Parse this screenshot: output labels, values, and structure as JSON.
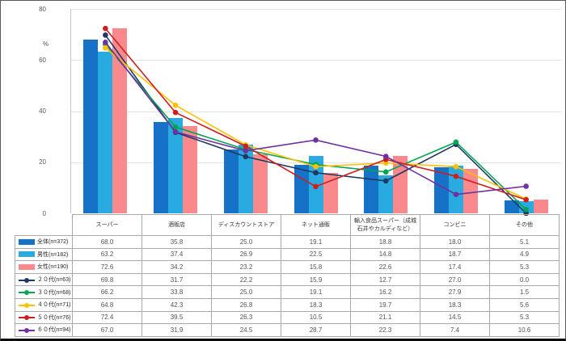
{
  "chart_data": {
    "type": "bar+line",
    "title": "",
    "ylabel": "%",
    "ylim": [
      0,
      80
    ],
    "yticks": [
      0,
      20,
      40,
      60,
      80
    ],
    "grid": true,
    "legend_position": "table-left-column",
    "categories": [
      "スーパー",
      "酒販店",
      "ディスカウントストア",
      "ネット通販",
      "輸入食品スーパー（成城石井やカルディなど）",
      "コンビニ",
      "その他"
    ],
    "bar_series": [
      {
        "name": "全体(n=372)",
        "color": "#1572c6",
        "values": [
          68.0,
          35.8,
          25.0,
          19.1,
          18.8,
          18.0,
          5.1
        ]
      },
      {
        "name": "男性(n=182)",
        "color": "#29abe2",
        "values": [
          63.2,
          37.4,
          26.9,
          22.5,
          14.8,
          18.7,
          4.9
        ]
      },
      {
        "name": "女性(n=190)",
        "color": "#f9898c",
        "values": [
          72.6,
          34.2,
          23.2,
          15.8,
          22.6,
          17.4,
          5.3
        ]
      }
    ],
    "line_series": [
      {
        "name": "２０代(n=63)",
        "color": "#1f3864",
        "values": [
          69.8,
          31.7,
          22.2,
          15.9,
          12.7,
          27.0,
          0.0
        ]
      },
      {
        "name": "３０代(n=68)",
        "color": "#00a651",
        "values": [
          66.2,
          33.8,
          25.0,
          19.1,
          16.2,
          27.9,
          1.5
        ]
      },
      {
        "name": "４０代(n=71)",
        "color": "#ffc000",
        "values": [
          64.8,
          42.3,
          26.8,
          18.3,
          19.7,
          18.3,
          5.6
        ]
      },
      {
        "name": "５０代(n=76)",
        "color": "#cd1f1f",
        "values": [
          72.4,
          39.5,
          26.3,
          10.5,
          21.1,
          14.5,
          5.3
        ]
      },
      {
        "name": "６０代(n=94)",
        "color": "#7030a0",
        "values": [
          67.0,
          31.9,
          24.5,
          28.7,
          22.3,
          7.4,
          10.6
        ]
      }
    ]
  },
  "colors": {
    "axis": "#c6c6c6",
    "gridline": "#e4e4e4",
    "table_border": "#aaaaaa",
    "value_text": "#555555",
    "header_text": "#333333"
  }
}
